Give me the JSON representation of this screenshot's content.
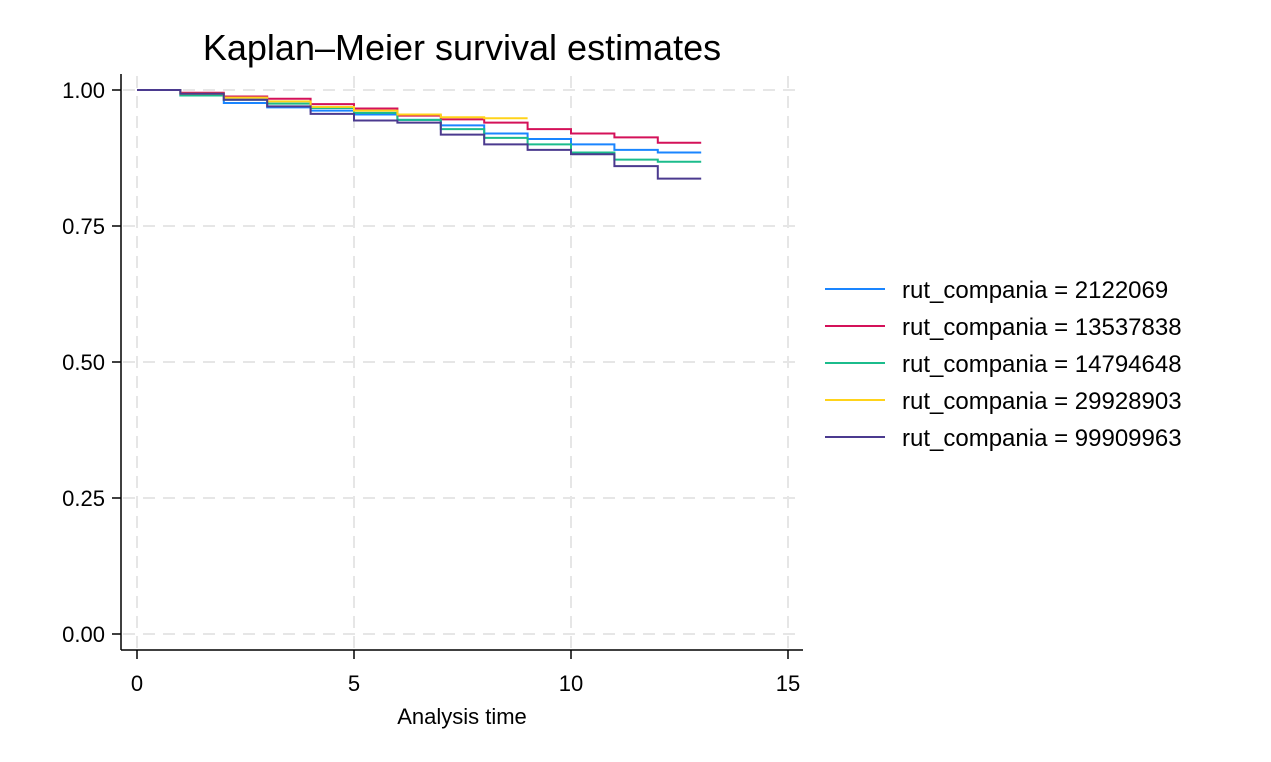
{
  "chart_data": {
    "type": "line",
    "subtype": "step",
    "title": "Kaplan–Meier survival estimates",
    "xlabel": "Analysis time",
    "ylabel": "",
    "xlim": [
      0,
      15
    ],
    "ylim": [
      0,
      1
    ],
    "xticks": [
      0,
      5,
      10,
      15
    ],
    "xtick_labels": [
      "0",
      "5",
      "10",
      "15"
    ],
    "yticks": [
      0,
      0.25,
      0.5,
      0.75,
      1.0
    ],
    "ytick_labels": [
      "0.00",
      "0.25",
      "0.50",
      "0.75",
      "1.00"
    ],
    "grid": true,
    "legend_position": "right",
    "series": [
      {
        "name": "rut_compania = 2122069",
        "color": "#1a85ff",
        "x": [
          0,
          1,
          2,
          3,
          4,
          5,
          6,
          7,
          8,
          9,
          10,
          11,
          12,
          13
        ],
        "y": [
          1.0,
          0.99,
          0.976,
          0.968,
          0.962,
          0.955,
          0.945,
          0.935,
          0.92,
          0.91,
          0.9,
          0.89,
          0.885,
          0.885
        ]
      },
      {
        "name": "rut_compania = 13537838",
        "color": "#d41159",
        "x": [
          0,
          1,
          2,
          3,
          4,
          5,
          6,
          7,
          8,
          9,
          10,
          11,
          12,
          13
        ],
        "y": [
          1.0,
          0.995,
          0.988,
          0.984,
          0.974,
          0.966,
          0.953,
          0.946,
          0.94,
          0.928,
          0.92,
          0.913,
          0.903,
          0.903
        ]
      },
      {
        "name": "rut_compania = 14794648",
        "color": "#1bbc8c",
        "x": [
          0,
          1,
          2,
          3,
          4,
          5,
          6,
          7,
          8,
          9,
          10,
          11,
          12,
          13
        ],
        "y": [
          1.0,
          0.99,
          0.982,
          0.975,
          0.967,
          0.958,
          0.945,
          0.928,
          0.912,
          0.9,
          0.885,
          0.872,
          0.868,
          0.868
        ]
      },
      {
        "name": "rut_compania = 29928903",
        "color": "#ffd31a",
        "x": [
          0,
          1,
          2,
          3,
          4,
          5,
          6,
          7,
          8,
          9
        ],
        "y": [
          1.0,
          0.993,
          0.986,
          0.979,
          0.969,
          0.962,
          0.955,
          0.95,
          0.948,
          0.948
        ]
      },
      {
        "name": "rut_compania = 99909963",
        "color": "#4b3a8f",
        "x": [
          0,
          1,
          2,
          3,
          4,
          5,
          6,
          7,
          8,
          9,
          10,
          11,
          12,
          13
        ],
        "y": [
          1.0,
          0.993,
          0.982,
          0.97,
          0.956,
          0.944,
          0.94,
          0.918,
          0.9,
          0.89,
          0.882,
          0.86,
          0.837,
          0.837
        ]
      }
    ]
  }
}
